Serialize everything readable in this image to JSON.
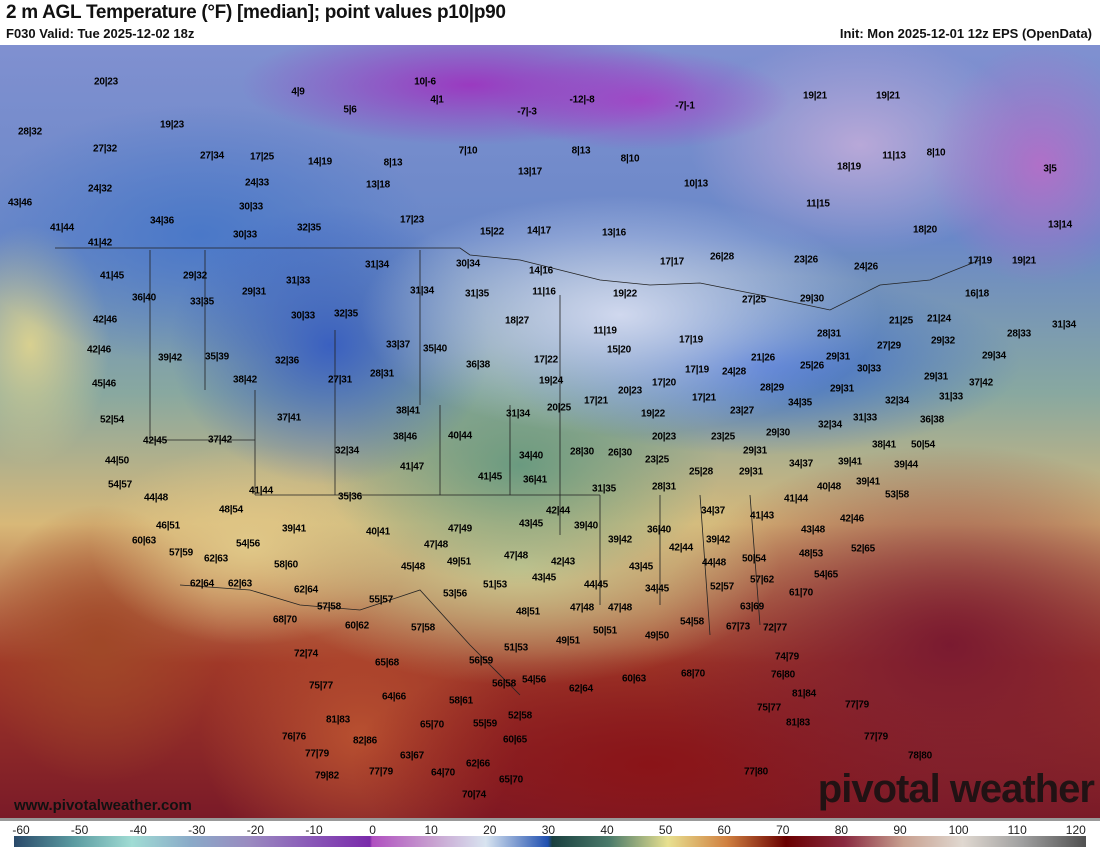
{
  "header": {
    "title": "2 m AGL Temperature (°F) [median]; point values p10|p90",
    "valid": "F030 Valid: Tue 2025-12-02 18z",
    "init": "Init: Mon 2025-12-01 12z EPS (OpenData)"
  },
  "footer": {
    "website": "www.pivotalweather.com",
    "logo": "pivotal weather"
  },
  "colorbar": {
    "unit": "°F",
    "ticks": [
      "-60",
      "-50",
      "-40",
      "-30",
      "-20",
      "-10",
      "0",
      "10",
      "20",
      "30",
      "40",
      "50",
      "60",
      "70",
      "80",
      "90",
      "100",
      "110",
      "120"
    ]
  },
  "map": {
    "point_values": [
      "20|23",
      "4|9",
      "10|-6",
      "5|6",
      "4|1",
      "-7|-3",
      "-12|-8",
      "-7|-1",
      "19|21",
      "19|21",
      "28|32",
      "19|23",
      "27|32",
      "27|34",
      "17|25",
      "14|19",
      "8|13",
      "7|10",
      "8|13",
      "8|10",
      "11|13",
      "8|10",
      "18|19",
      "3|5",
      "24|32",
      "24|33",
      "13|18",
      "13|17",
      "10|13",
      "43|46",
      "30|33",
      "11|15",
      "34|36",
      "41|44",
      "17|23",
      "30|33",
      "32|35",
      "15|22",
      "14|17",
      "13|16",
      "18|20",
      "13|14",
      "41|42",
      "17|17",
      "26|28",
      "23|26",
      "24|26",
      "17|19",
      "19|21",
      "41|45",
      "29|32",
      "31|34",
      "30|34",
      "14|16",
      "31|33",
      "29|31",
      "31|34",
      "31|35",
      "11|16",
      "19|22",
      "27|25",
      "29|30",
      "16|18",
      "36|40",
      "33|35",
      "30|33",
      "32|35",
      "18|27",
      "21|25",
      "21|24",
      "42|46",
      "28|31",
      "11|19",
      "29|32",
      "28|33",
      "31|34",
      "33|37",
      "35|40",
      "42|46",
      "39|42",
      "35|39",
      "32|36",
      "17|19",
      "15|20",
      "17|22",
      "27|29",
      "29|31",
      "21|26",
      "29|34",
      "36|38",
      "30|33",
      "17|19",
      "24|28",
      "25|26",
      "27|31",
      "28|31",
      "38|42",
      "45|46",
      "19|24",
      "29|31",
      "37|42",
      "28|29",
      "29|31",
      "20|23",
      "17|20",
      "17|21",
      "17|21",
      "20|25",
      "34|35",
      "32|34",
      "31|33",
      "38|41",
      "31|34",
      "19|22",
      "23|27",
      "37|41",
      "52|54",
      "31|33",
      "36|38",
      "32|34",
      "40|44",
      "42|45",
      "37|42",
      "38|46",
      "20|23",
      "23|25",
      "29|30",
      "38|41",
      "50|54",
      "32|34",
      "29|31",
      "34|40",
      "28|30",
      "26|30",
      "23|25",
      "44|50",
      "41|47",
      "34|37",
      "39|41",
      "39|44",
      "41|45",
      "36|41",
      "25|28",
      "29|31",
      "40|48",
      "39|41",
      "54|57",
      "41|44",
      "31|35",
      "28|31",
      "35|36",
      "53|58",
      "44|48",
      "48|54",
      "34|37",
      "41|44",
      "41|43",
      "42|44",
      "42|46",
      "46|51",
      "39|41",
      "40|41",
      "47|49",
      "43|45",
      "39|40",
      "36|40",
      "39|42",
      "43|48",
      "60|63",
      "54|56",
      "47|48",
      "57|59",
      "62|63",
      "42|44",
      "39|42",
      "52|65",
      "48|53",
      "58|60",
      "45|48",
      "49|51",
      "47|48",
      "42|43",
      "43|45",
      "44|48",
      "50|54",
      "54|65",
      "62|64",
      "62|63",
      "62|64",
      "43|45",
      "51|53",
      "44|45",
      "34|45",
      "52|57",
      "57|62",
      "61|70",
      "53|56",
      "57|58",
      "55|57",
      "48|51",
      "47|48",
      "47|48",
      "63|69",
      "68|70",
      "60|62",
      "57|58",
      "54|58",
      "67|73",
      "72|77",
      "50|51",
      "49|50",
      "49|51",
      "51|53",
      "72|74",
      "56|59",
      "65|68",
      "74|79",
      "62|64",
      "60|63",
      "68|70",
      "54|56",
      "76|80",
      "75|77",
      "56|58",
      "64|66",
      "58|61",
      "81|84",
      "77|79",
      "75|77",
      "81|83",
      "52|58",
      "55|59",
      "65|70",
      "81|83",
      "76|76",
      "82|86",
      "60|65",
      "77|79",
      "77|79",
      "63|67",
      "62|66",
      "78|80",
      "79|82",
      "77|79",
      "64|70",
      "65|70",
      "77|80",
      "70|74"
    ]
  }
}
